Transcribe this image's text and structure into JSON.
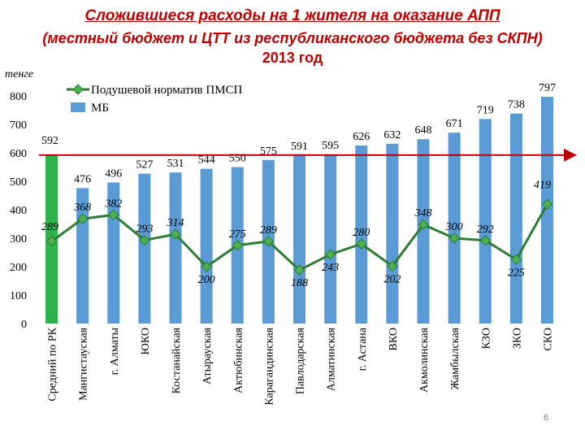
{
  "header": {
    "title": "Сложившиеся расходы на 1 жителя на оказание АПП",
    "subtitle": "(местный бюджет и ЦТТ из республиканского бюджета без СКПН)",
    "year": "2013 год"
  },
  "footer": {
    "page_number": "6"
  },
  "chart_data": {
    "type": "bar",
    "unit": "тенге",
    "categories": [
      "Средний по РК",
      "Мангистауская",
      "г. Алматы",
      "ЮКО",
      "Костанайская",
      "Атырауская",
      "Актюбинская",
      "Карагандинская",
      "Павлодарская",
      "Алматинская",
      "г. Астана",
      "ВКО",
      "Акмолинская",
      "Жамбылская",
      "КЗО",
      "ЗКО",
      "СКО"
    ],
    "series": [
      {
        "name": "МБ",
        "type": "bar",
        "color": "#5b9bd5",
        "highlight_color": "#2db34a",
        "highlight_index": 0,
        "values": [
          592,
          476,
          496,
          527,
          531,
          544,
          550,
          575,
          591,
          595,
          626,
          632,
          648,
          671,
          719,
          738,
          797
        ],
        "labels": [
          "592",
          "476",
          "496",
          "527",
          "531",
          "544",
          "550",
          "575",
          "591",
          "595",
          "626",
          "632",
          "648",
          "671",
          "719",
          "738",
          "797"
        ]
      },
      {
        "name": "Подушевой норматив ПМСП",
        "type": "line",
        "color": "#2e7d32",
        "values": [
          289,
          368,
          382,
          293,
          314,
          200,
          275,
          289,
          188,
          243,
          280,
          202,
          348,
          300,
          292,
          225,
          419
        ],
        "labels": [
          "289",
          "368",
          "382",
          "293",
          "314",
          "200",
          "275",
          "289",
          "188",
          "243",
          "280",
          "202",
          "348",
          "300",
          "292",
          "225",
          "419"
        ]
      }
    ],
    "ylim": [
      0,
      800
    ],
    "yticks": [
      "0",
      "100",
      "200",
      "300",
      "400",
      "500",
      "600",
      "700",
      "800"
    ],
    "reference_line": {
      "value": 592,
      "color": "#c00000"
    },
    "legend_position": "top-left"
  }
}
